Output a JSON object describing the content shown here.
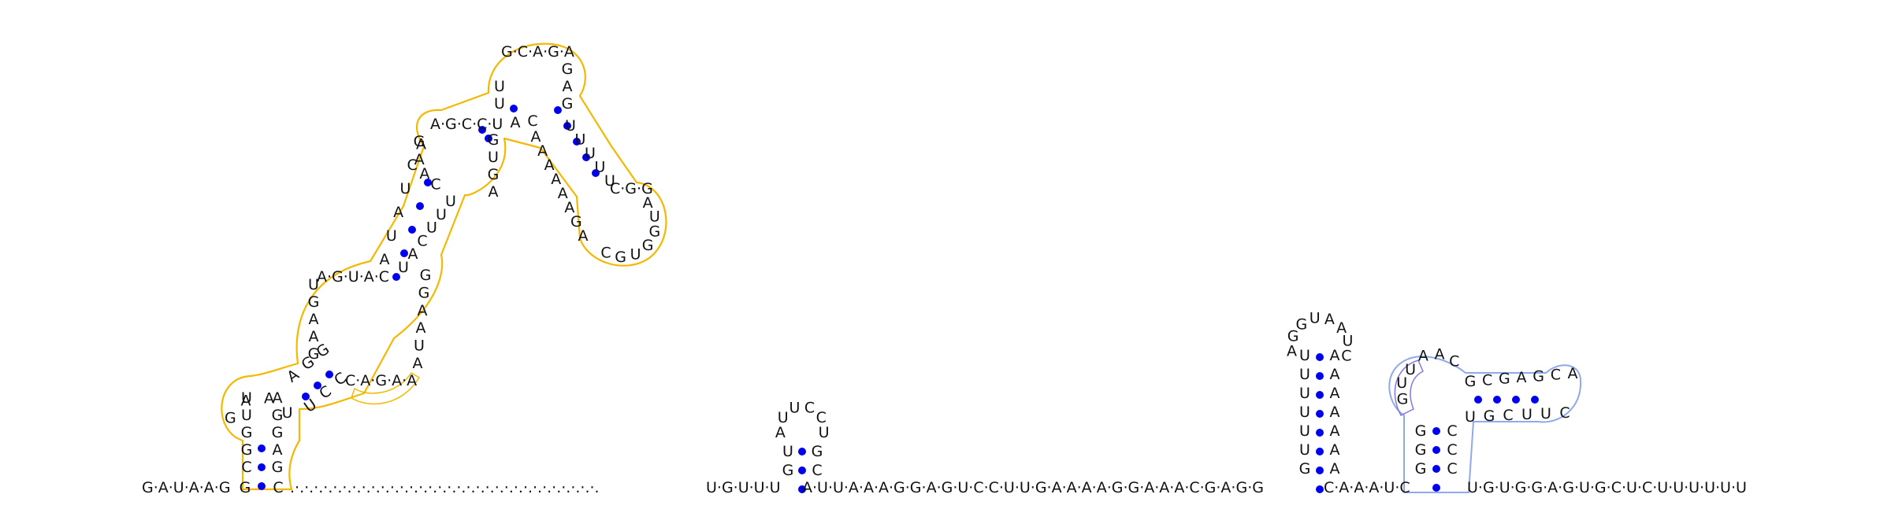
{
  "colors": {
    "pair_dot": "#0000ee",
    "letter": "#111111",
    "link": "#111111",
    "domain1_outline": "#f5b800",
    "domain1_fill": "#fffbe8",
    "domain1_accent": "#f5b800",
    "domain2_outline": "#8fa8ee",
    "domain2_fill": "#dbe6fb",
    "domain2_accent": "#8577dd"
  },
  "backbone": {
    "left": "G·A·U·A·A·G",
    "left_stem": [
      "G",
      "C"
    ],
    "gap": ".·.·.·.·.·.·.·.·.·.·.·.·.·.·.·.·.·.·.·.·.·.·.·.·.·.·.·.·.·.·.·.·.",
    "mid1": "U·G·U·U·U",
    "mid2": "A·U·U·A·A·A·G·G·A·G·U·C·C·U·U·G·A·A·A·A·G·G·A·A·A·C·G·A·G·G",
    "mid3": "C·A·A·A·U·C",
    "right": "U·G·U·G·G·A·G·U·G·C·U·C·U·U·U·U·U·U"
  },
  "large_domain": {
    "stem_bottom_left": [
      "C",
      "G",
      "G",
      "U",
      "U"
    ],
    "stem_bottom_right": [
      "G",
      "A",
      "G",
      "G",
      "A"
    ],
    "loop1": [
      "G",
      "A",
      "A",
      "U"
    ],
    "seg2_left": [
      "A",
      "G",
      "G"
    ],
    "seg2_right": [
      "U",
      "C",
      "C"
    ],
    "highlight_run": "C·A·G·A·A",
    "left_strand": [
      "G",
      "A",
      "A",
      "G",
      "U"
    ],
    "top_of_loop2": "A·G·U·A·C",
    "right_strand": [
      "A",
      "U",
      "A",
      "A",
      "G",
      "G"
    ],
    "stem3_left": [
      "A",
      "U",
      "A",
      "U",
      "C",
      "G"
    ],
    "stem3_right": [
      "U",
      "A",
      "C",
      "U",
      "U",
      "U"
    ],
    "loop3_left": [
      "C",
      "A",
      "A",
      "A"
    ],
    "loop3_top": "A·G·C·C·U",
    "loop3_right": [
      "G",
      "U",
      "G",
      "A"
    ],
    "upper_stem_left": [
      "U",
      "U"
    ],
    "upper_stem_right": [
      "A",
      "C"
    ],
    "top_loop": "G·C·A·G·A",
    "top_right": [
      "G",
      "A",
      "G"
    ],
    "branch_left": [
      "A",
      "A",
      "A",
      "A",
      "A",
      "A",
      "G",
      "A"
    ],
    "branch_right": [
      "U",
      "U",
      "U",
      "U",
      "U"
    ],
    "branch_loop": "C·G·G·A·U·G·G·U·G·C"
  },
  "small_hairpin": {
    "stem_left": [
      "G",
      "U"
    ],
    "stem_right": [
      "C",
      "G"
    ],
    "loop": [
      "A",
      "U",
      "U",
      "C",
      "C",
      "U"
    ]
  },
  "tall_hairpin": {
    "stem_left": [
      "G",
      "U",
      "U",
      "U",
      "U",
      "U",
      "U"
    ],
    "stem_right": [
      "A",
      "A",
      "A",
      "A",
      "A",
      "A",
      "A"
    ],
    "loop": [
      "A",
      "G",
      "G",
      "U",
      "A",
      "A",
      "U",
      "C"
    ]
  },
  "right_domain": {
    "stem_left": [
      "G",
      "G",
      "G"
    ],
    "stem_right": [
      "C",
      "C",
      "C"
    ],
    "loop_left": [
      "G",
      "U",
      "U"
    ],
    "loop_top": [
      "A",
      "A",
      "C"
    ],
    "arm_top": [
      "G",
      "C",
      "G",
      "A",
      "G",
      "C",
      "A"
    ],
    "arm_bottom": [
      "U",
      "G",
      "C",
      "U",
      "U",
      "C"
    ]
  }
}
